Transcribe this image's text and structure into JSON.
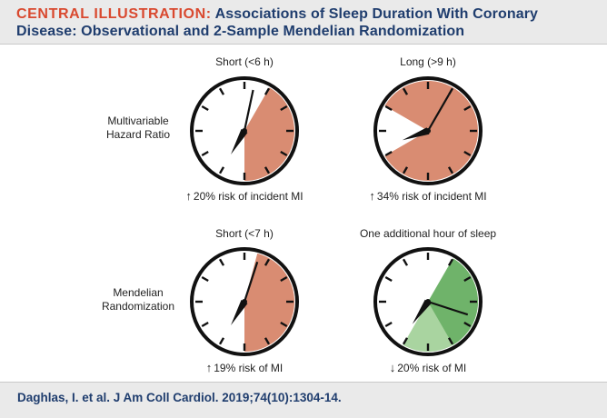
{
  "header": {
    "prefix": "CENTRAL ILLUSTRATION:",
    "title_line1": "Associations of Sleep Duration With Coronary",
    "title_line2": "Disease: Observational and 2-Sample Mendelian Randomization"
  },
  "rows": [
    {
      "label_line1": "Multivariable",
      "label_line2": "Hazard Ratio"
    },
    {
      "label_line1": "Mendelian",
      "label_line2": "Randomization"
    }
  ],
  "clocks": [
    {
      "title": "Short (<6 h)",
      "arrow": "↑",
      "caption": "20% risk of incident MI",
      "fill_color": "#d98c72",
      "dark_wedge_color": "",
      "shaded_hours": 6
    },
    {
      "title": "Long (>9 h)",
      "arrow": "↑",
      "caption": "34% risk of incident MI",
      "fill_color": "#d98c72",
      "dark_wedge_color": "",
      "shaded_hours": 9
    },
    {
      "title": "Short (<7 h)",
      "arrow": "↑",
      "caption": "19% risk of MI",
      "fill_color": "#d98c72",
      "dark_wedge_color": "",
      "shaded_hours": 6
    },
    {
      "title": "One additional hour of sleep",
      "arrow": "↓",
      "caption": "20% risk of MI",
      "fill_color": "#a9d4a0",
      "dark_wedge_color": "#6fb36a",
      "shaded_hours": 7
    }
  ],
  "footer": {
    "citation": "Daghlas, I. et al. J Am Coll Cardiol. 2019;74(10):1304-14."
  }
}
